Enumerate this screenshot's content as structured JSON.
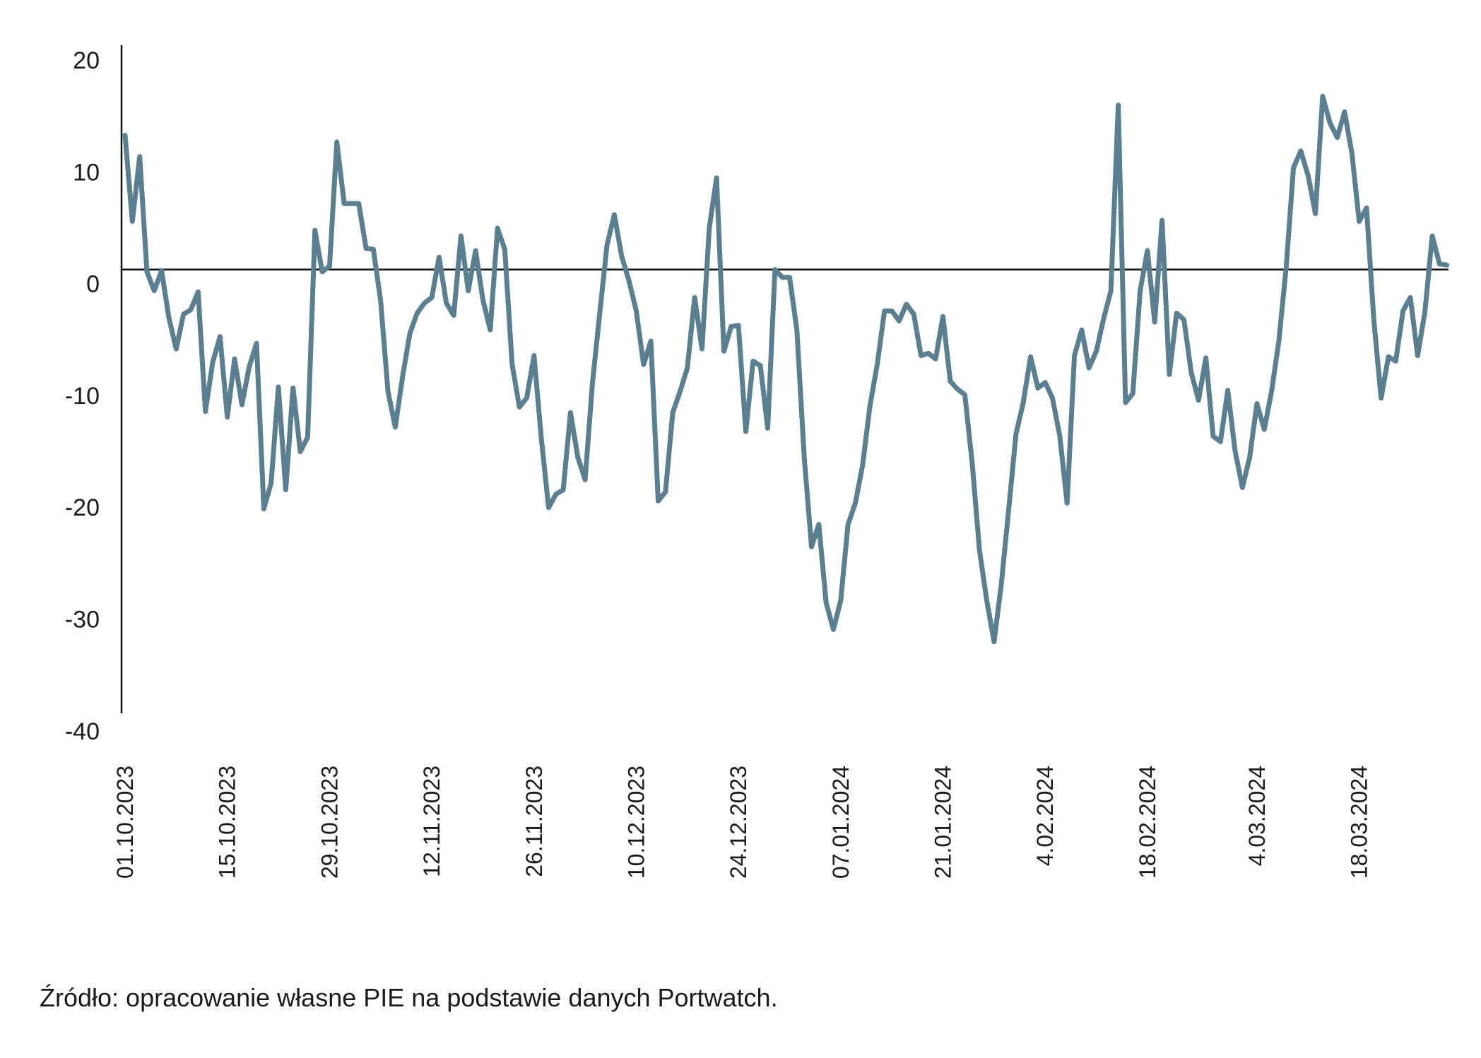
{
  "chart_data": {
    "type": "line",
    "title": "",
    "xlabel": "",
    "ylabel": "",
    "ylim": [
      -40,
      20
    ],
    "yticks": [
      20,
      10,
      0,
      -10,
      -20,
      -30,
      -40
    ],
    "zero_line": true,
    "grid": false,
    "line_color": "#5a7f91",
    "x_start": "01.10.2023",
    "x_unit": "day",
    "xtick_days": [
      0,
      14,
      28,
      42,
      56,
      70,
      84,
      98,
      112,
      126,
      140,
      155,
      169
    ],
    "xtick_labels": [
      "01.10.2023",
      "15.10.2023",
      "29.10.2023",
      "12.11.2023",
      "26.11.2023",
      "10.12.2023",
      "24.12.2023",
      "07.01.2024",
      "21.01.2024",
      "4.02.2024",
      "18.02.2024",
      "4.03.2024",
      "18.03.2024"
    ],
    "series": [
      {
        "name": "series",
        "values": [
          12.0,
          4.3,
          10.1,
          -0.2,
          -1.9,
          -0.1,
          -4.3,
          -7.1,
          -4.0,
          -3.6,
          -2.0,
          -12.7,
          -8.3,
          -6.0,
          -13.2,
          -8.0,
          -12.1,
          -8.7,
          -6.6,
          -21.4,
          -19.1,
          -10.5,
          -19.7,
          -10.6,
          -16.3,
          -15.0,
          3.5,
          -0.2,
          0.3,
          11.4,
          5.9,
          5.9,
          5.9,
          1.9,
          1.8,
          -2.8,
          -10.9,
          -14.1,
          -9.6,
          -5.7,
          -3.9,
          -3.0,
          -2.5,
          1.1,
          -3.0,
          -4.1,
          3.0,
          -1.9,
          1.7,
          -2.7,
          -5.4,
          3.7,
          1.8,
          -8.5,
          -12.3,
          -11.5,
          -7.7,
          -15.1,
          -21.3,
          -20.1,
          -19.7,
          -12.8,
          -16.8,
          -18.8,
          -10.2,
          -3.9,
          2.2,
          4.9,
          1.2,
          -1.0,
          -3.7,
          -8.5,
          -6.4,
          -20.7,
          -19.9,
          -12.8,
          -10.9,
          -8.8,
          -2.5,
          -7.1,
          3.7,
          8.2,
          -7.3,
          -5.1,
          -5.0,
          -14.5,
          -8.2,
          -8.6,
          -14.2,
          0.0,
          -0.7,
          -0.7,
          -5.4,
          -16.8,
          -24.8,
          -22.8,
          -29.8,
          -32.2,
          -29.6,
          -22.8,
          -20.9,
          -17.5,
          -12.2,
          -8.5,
          -3.7,
          -3.7,
          -4.6,
          -3.1,
          -4.0,
          -7.7,
          -7.5,
          -8.0,
          -4.2,
          -10.0,
          -10.7,
          -11.2,
          -17.3,
          -25.1,
          -29.6,
          -33.3,
          -28.1,
          -21.5,
          -14.7,
          -11.9,
          -7.8,
          -10.6,
          -10.1,
          -11.5,
          -14.9,
          -20.9,
          -7.7,
          -5.4,
          -8.8,
          -7.3,
          -4.4,
          -1.9,
          14.7,
          -11.9,
          -11.1,
          -1.9,
          1.7,
          -4.7,
          4.4,
          -9.4,
          -3.9,
          -4.5,
          -9.2,
          -11.7,
          -7.9,
          -14.9,
          -15.4,
          -10.8,
          -16.2,
          -19.5,
          -16.8,
          -12.0,
          -14.3,
          -10.9,
          -6.4,
          0.2,
          9.1,
          10.6,
          8.4,
          5.0,
          15.5,
          13.1,
          11.8,
          14.1,
          10.4,
          4.3,
          5.5,
          -4.5,
          -11.5,
          -7.8,
          -8.2,
          -3.7,
          -2.5,
          -7.7,
          -3.8,
          3.0,
          0.5,
          0.4
        ]
      }
    ]
  },
  "source_note": "Źródło: opracowanie własne PIE na podstawie danych Portwatch."
}
